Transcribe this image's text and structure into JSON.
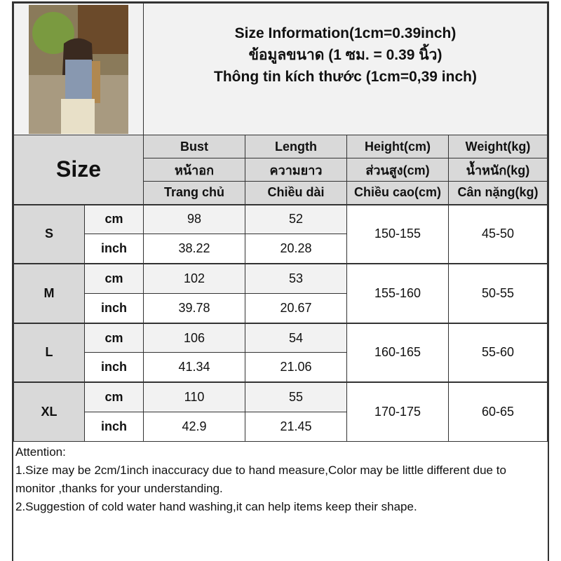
{
  "title_lines": [
    "Size Information(1cm=0.39inch)",
    "ข้อมูลขนาด (1 ซม. = 0.39 นิ้ว)",
    "Thông tin kích thước (1cm=0,39 inch)"
  ],
  "size_header": "Size",
  "columns": [
    [
      "Bust",
      "หน้าอก",
      "Trang chủ"
    ],
    [
      "Length",
      "ความยาว",
      "Chiều dài"
    ],
    [
      "Height(cm)",
      "ส่วนสูง(cm)",
      "Chiều cao(cm)"
    ],
    [
      "Weight(kg)",
      "น้ำหนัก(kg)",
      "Cân nặng(kg)"
    ]
  ],
  "unit_cm": "cm",
  "unit_inch": "inch",
  "rows": [
    {
      "size": "S",
      "cm": [
        "98",
        "52"
      ],
      "inch": [
        "38.22",
        "20.28"
      ],
      "height": "150-155",
      "weight": "45-50"
    },
    {
      "size": "M",
      "cm": [
        "102",
        "53"
      ],
      "inch": [
        "39.78",
        "20.67"
      ],
      "height": "155-160",
      "weight": "50-55"
    },
    {
      "size": "L",
      "cm": [
        "106",
        "54"
      ],
      "inch": [
        "41.34",
        "21.06"
      ],
      "height": "160-165",
      "weight": "55-60"
    },
    {
      "size": "XL",
      "cm": [
        "110",
        "55"
      ],
      "inch": [
        "42.9",
        "21.45"
      ],
      "height": "170-175",
      "weight": "60-65"
    }
  ],
  "attention": {
    "heading": "Attention:",
    "notes": [
      "1.Size may be 2cm/1inch inaccuracy due to hand measure,Color may be little different due to monitor ,thanks for your understanding.",
      "2.Suggestion of cold water hand washing,it can help items keep their shape."
    ]
  }
}
